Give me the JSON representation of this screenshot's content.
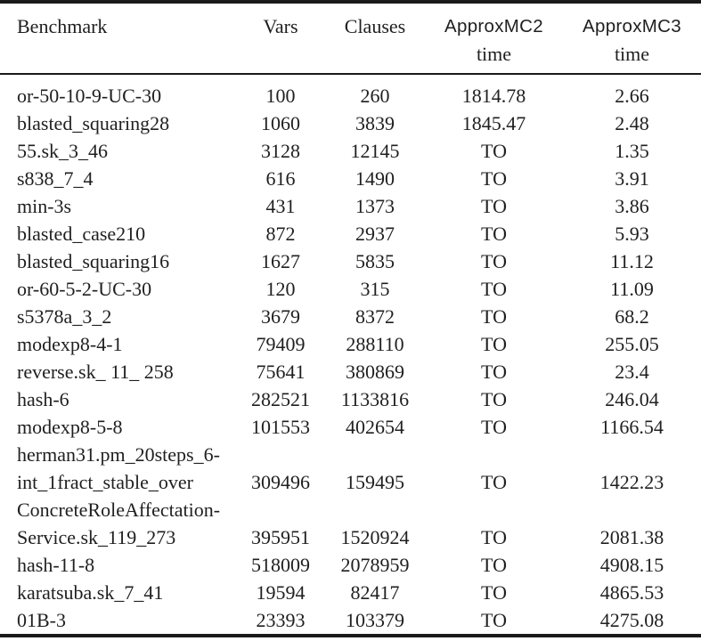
{
  "table": {
    "header": {
      "benchmark": "Benchmark",
      "vars": "Vars",
      "clauses": "Clauses",
      "approxmc2": "ApproxMC2",
      "approxmc3": "ApproxMC3",
      "time_label": "time"
    },
    "timeout_label": "TO",
    "rows": [
      {
        "name": [
          "or-50-10-9-UC-30"
        ],
        "vars": "100",
        "clauses": "260",
        "approxmc2_time": "1814.78",
        "approxmc3_time": "2.66"
      },
      {
        "name": [
          "blasted_squaring28"
        ],
        "vars": "1060",
        "clauses": "3839",
        "approxmc2_time": "1845.47",
        "approxmc3_time": "2.48"
      },
      {
        "name": [
          "55.sk_3_46"
        ],
        "vars": "3128",
        "clauses": "12145",
        "approxmc2_time": "TO",
        "approxmc3_time": "1.35"
      },
      {
        "name": [
          "s838_7_4"
        ],
        "vars": "616",
        "clauses": "1490",
        "approxmc2_time": "TO",
        "approxmc3_time": "3.91"
      },
      {
        "name": [
          "min-3s"
        ],
        "vars": "431",
        "clauses": "1373",
        "approxmc2_time": "TO",
        "approxmc3_time": "3.86"
      },
      {
        "name": [
          "blasted_case210"
        ],
        "vars": "872",
        "clauses": "2937",
        "approxmc2_time": "TO",
        "approxmc3_time": "5.93"
      },
      {
        "name": [
          "blasted_squaring16"
        ],
        "vars": "1627",
        "clauses": "5835",
        "approxmc2_time": "TO",
        "approxmc3_time": "11.12"
      },
      {
        "name": [
          "or-60-5-2-UC-30"
        ],
        "vars": "120",
        "clauses": "315",
        "approxmc2_time": "TO",
        "approxmc3_time": "11.09"
      },
      {
        "name": [
          "s5378a_3_2"
        ],
        "vars": "3679",
        "clauses": "8372",
        "approxmc2_time": "TO",
        "approxmc3_time": "68.2"
      },
      {
        "name": [
          "modexp8-4-1"
        ],
        "vars": "79409",
        "clauses": "288110",
        "approxmc2_time": "TO",
        "approxmc3_time": "255.05"
      },
      {
        "name": [
          "reverse.sk_ 11_ 258"
        ],
        "vars": "75641",
        "clauses": "380869",
        "approxmc2_time": "TO",
        "approxmc3_time": "23.4"
      },
      {
        "name": [
          "hash-6"
        ],
        "vars": "282521",
        "clauses": "1133816",
        "approxmc2_time": "TO",
        "approxmc3_time": "246.04"
      },
      {
        "name": [
          "modexp8-5-8"
        ],
        "vars": "101553",
        "clauses": "402654",
        "approxmc2_time": "TO",
        "approxmc3_time": "1166.54"
      },
      {
        "name": [
          "herman31.pm_20steps_6-",
          "int_1fract_stable_over"
        ],
        "vars": "309496",
        "clauses": "159495",
        "approxmc2_time": "TO",
        "approxmc3_time": "1422.23"
      },
      {
        "name": [
          "ConcreteRoleAffectation-",
          "Service.sk_119_273"
        ],
        "vars": "395951",
        "clauses": "1520924",
        "approxmc2_time": "TO",
        "approxmc3_time": "2081.38"
      },
      {
        "name": [
          "hash-11-8"
        ],
        "vars": "518009",
        "clauses": "2078959",
        "approxmc2_time": "TO",
        "approxmc3_time": "4908.15"
      },
      {
        "name": [
          "karatsuba.sk_7_41"
        ],
        "vars": "19594",
        "clauses": "82417",
        "approxmc2_time": "TO",
        "approxmc3_time": "4865.53"
      },
      {
        "name": [
          "01B-3"
        ],
        "vars": "23393",
        "clauses": "103379",
        "approxmc2_time": "TO",
        "approxmc3_time": "4275.08"
      }
    ]
  },
  "colors": {
    "background": "#ffffff",
    "text": "#1f1f1f",
    "rule": "#1a1a1a"
  }
}
